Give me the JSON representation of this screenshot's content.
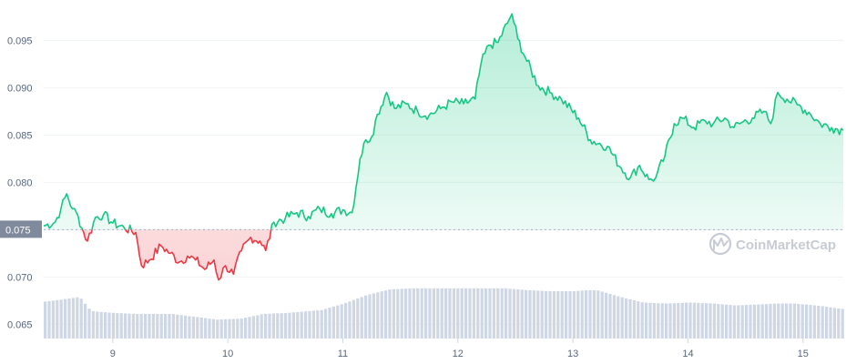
{
  "colors": {
    "up": "#16c784",
    "down": "#ea3943",
    "volume": "#cfd6e4",
    "grid": "#eff2f5",
    "axis_text": "#58667e",
    "ref_label_bg": "#808a9d",
    "ref_line": "#a7b1c2"
  },
  "watermark": "CoinMarketCap",
  "chart_data": {
    "type": "line",
    "title": "",
    "xlabel": "",
    "ylabel": "",
    "x_ticks": [
      "9",
      "10",
      "11",
      "12",
      "13",
      "14",
      "15"
    ],
    "y_ticks": [
      "0.065",
      "0.070",
      "0.075",
      "0.080",
      "0.085",
      "0.090",
      "0.095"
    ],
    "ylim": [
      0.0635,
      0.0985
    ],
    "xlim": [
      8.4,
      15.35
    ],
    "reference_price": 0.075,
    "reference_label": "0.075",
    "grid": true,
    "price_series": {
      "x": [
        8.4,
        8.5,
        8.55,
        8.6,
        8.65,
        8.7,
        8.73,
        8.78,
        8.85,
        8.92,
        9.0,
        9.1,
        9.2,
        9.25,
        9.32,
        9.42,
        9.5,
        9.58,
        9.65,
        9.72,
        9.8,
        9.88,
        9.92,
        9.98,
        10.05,
        10.12,
        10.2,
        10.28,
        10.33,
        10.4,
        10.5,
        10.6,
        10.7,
        10.8,
        10.9,
        11.0,
        11.08,
        11.15,
        11.2,
        11.25,
        11.3,
        11.38,
        11.45,
        11.55,
        11.65,
        11.75,
        11.85,
        11.95,
        12.05,
        12.15,
        12.2,
        12.27,
        12.35,
        12.43,
        12.47,
        12.52,
        12.6,
        12.7,
        12.8,
        12.9,
        13.05,
        13.15,
        13.3,
        13.42,
        13.5,
        13.58,
        13.66,
        13.72,
        13.8,
        13.88,
        13.95,
        14.05,
        14.15,
        14.22,
        14.32,
        14.4,
        14.48,
        14.56,
        14.66,
        14.72,
        14.78,
        14.86,
        14.95,
        15.05,
        15.15,
        15.25,
        15.35
      ],
      "y": [
        0.0754,
        0.0758,
        0.0772,
        0.0788,
        0.0772,
        0.0764,
        0.0752,
        0.0738,
        0.0763,
        0.0766,
        0.0757,
        0.0752,
        0.0747,
        0.0712,
        0.0718,
        0.0733,
        0.0725,
        0.0716,
        0.0722,
        0.0718,
        0.0708,
        0.0718,
        0.0697,
        0.0712,
        0.0703,
        0.0728,
        0.0742,
        0.0738,
        0.0728,
        0.0758,
        0.0762,
        0.0768,
        0.0764,
        0.0772,
        0.0767,
        0.0771,
        0.0768,
        0.0825,
        0.0845,
        0.0848,
        0.0872,
        0.0895,
        0.0878,
        0.0883,
        0.0875,
        0.0871,
        0.0878,
        0.0885,
        0.0883,
        0.0888,
        0.0925,
        0.0945,
        0.0948,
        0.0968,
        0.0978,
        0.0952,
        0.0928,
        0.0902,
        0.0895,
        0.0888,
        0.0868,
        0.0845,
        0.0838,
        0.0815,
        0.0805,
        0.0818,
        0.0803,
        0.0805,
        0.0828,
        0.0862,
        0.0868,
        0.0858,
        0.0865,
        0.0862,
        0.0868,
        0.0858,
        0.0864,
        0.0868,
        0.0875,
        0.0862,
        0.0895,
        0.0888,
        0.0882,
        0.0874,
        0.0862,
        0.0858,
        0.0855
      ]
    },
    "volume_series": {
      "x": [
        8.4,
        8.6,
        8.7,
        8.8,
        9.0,
        9.2,
        9.5,
        9.7,
        9.9,
        10.1,
        10.3,
        10.5,
        10.8,
        11.0,
        11.2,
        11.4,
        11.6,
        11.8,
        12.0,
        12.2,
        12.4,
        12.6,
        12.8,
        13.0,
        13.1,
        13.2,
        13.4,
        13.6,
        13.8,
        14.0,
        14.2,
        14.4,
        14.6,
        14.75,
        14.9,
        15.1,
        15.35
      ],
      "y": [
        0.0674,
        0.0677,
        0.0679,
        0.0664,
        0.0662,
        0.0661,
        0.0661,
        0.0658,
        0.0655,
        0.0656,
        0.0661,
        0.0662,
        0.0665,
        0.0672,
        0.0681,
        0.0687,
        0.0688,
        0.0688,
        0.0688,
        0.0688,
        0.0688,
        0.0686,
        0.0685,
        0.0685,
        0.0686,
        0.0686,
        0.0679,
        0.0673,
        0.0672,
        0.0673,
        0.0672,
        0.067,
        0.0671,
        0.0672,
        0.0672,
        0.067,
        0.0666
      ]
    }
  }
}
